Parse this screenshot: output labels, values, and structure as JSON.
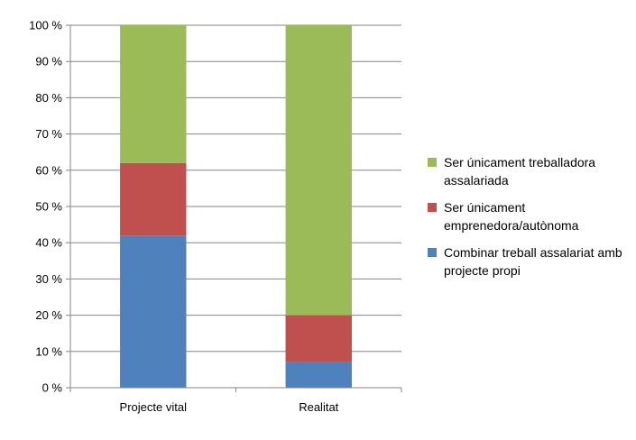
{
  "chart_data": {
    "type": "bar",
    "stacked": true,
    "percent": true,
    "categories": [
      "Projecte vital",
      "Realitat"
    ],
    "series": [
      {
        "name": "Combinar treball assalariat amb projecte propi",
        "color": "#4f81bd",
        "values": [
          42,
          7
        ]
      },
      {
        "name": "Ser únicament emprenedora/autònoma",
        "color": "#c0504d",
        "values": [
          20,
          13
        ]
      },
      {
        "name": "Ser únicament treballadora assalariada",
        "color": "#9bbb59",
        "values": [
          38,
          80
        ]
      }
    ],
    "ylim": [
      0,
      100
    ],
    "yticks": [
      "0 %",
      "10 %",
      "20 %",
      "30 %",
      "40 %",
      "50 %",
      "60 %",
      "70 %",
      "80 %",
      "90 %",
      "100 %"
    ],
    "grid": true,
    "legend_position": "right",
    "legend_order": [
      2,
      1,
      0
    ]
  }
}
